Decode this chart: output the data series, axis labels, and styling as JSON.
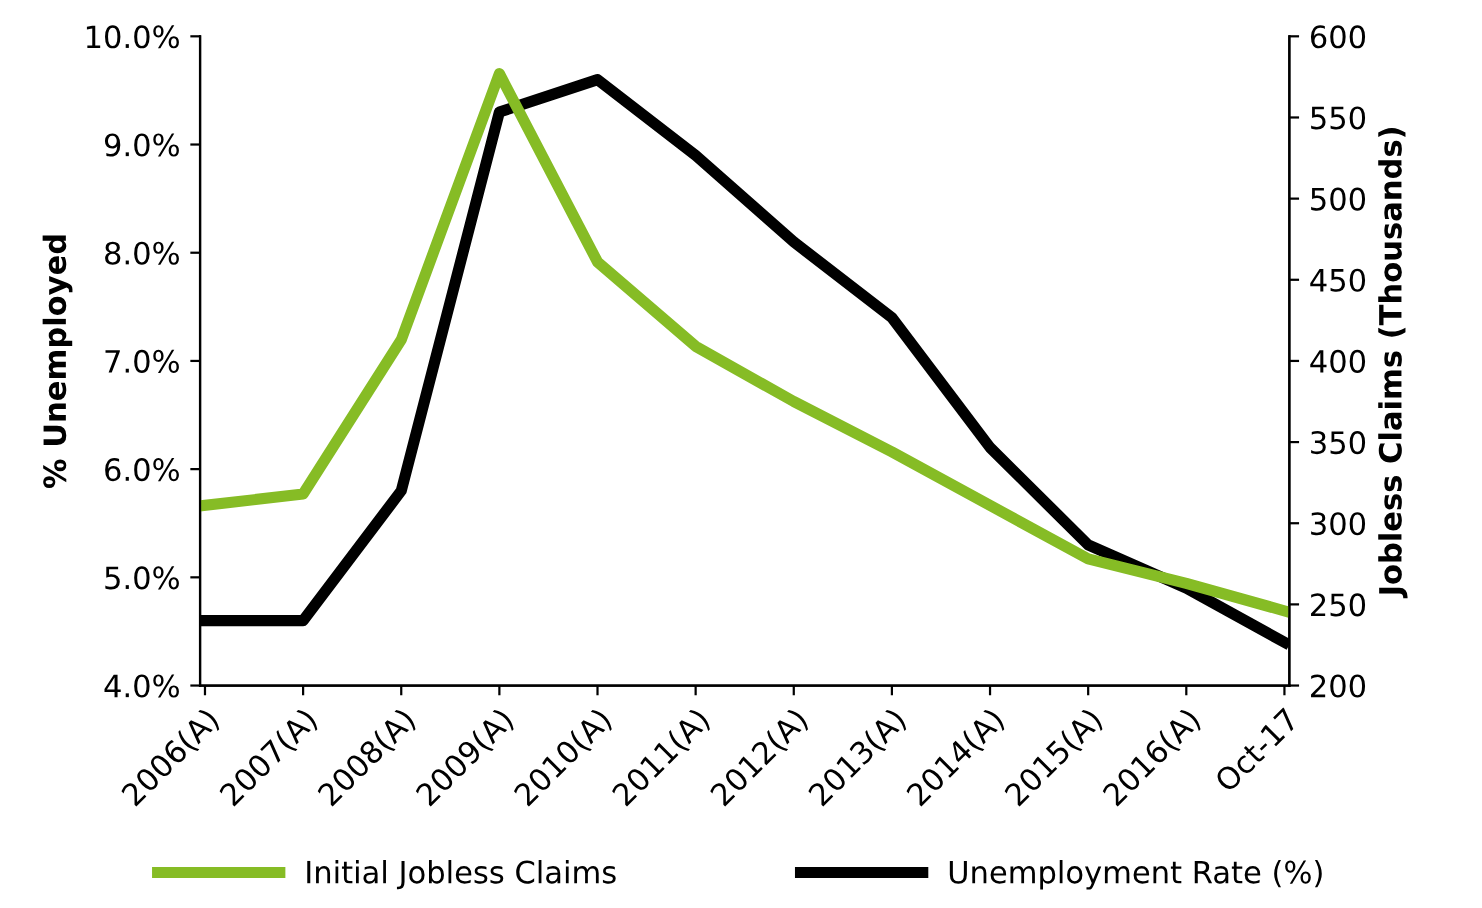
{
  "chart_data": {
    "type": "line",
    "ylabel": "% Unemployed",
    "y2label": "Jobless Claims (Thousands)",
    "categories": [
      "2006(A)",
      "2007(A)",
      "2008(A)",
      "2009(A)",
      "2010(A)",
      "2011(A)",
      "2012(A)",
      "2013(A)",
      "2014(A)",
      "2015(A)",
      "2016(A)",
      "Oct-17"
    ],
    "series": [
      {
        "name": "Initial Jobless Claims",
        "color": "#86bc25",
        "axis": "y2",
        "values": [
          311,
          318,
          413,
          577,
          461,
          409,
          375,
          344,
          311,
          278,
          263,
          246
        ]
      },
      {
        "name": "Unemployment Rate (%)",
        "color": "#000000",
        "axis": "y",
        "values": [
          4.6,
          4.6,
          5.8,
          9.3,
          9.6,
          8.9,
          8.1,
          7.4,
          6.2,
          5.3,
          4.9,
          4.4
        ]
      }
    ],
    "ylim": [
      4,
      10
    ],
    "yticks": [
      {
        "value": 4,
        "label": "4.0%"
      },
      {
        "value": 5,
        "label": "5.0%"
      },
      {
        "value": 6,
        "label": "6.0%"
      },
      {
        "value": 7,
        "label": "7.0%"
      },
      {
        "value": 8,
        "label": "8.0%"
      },
      {
        "value": 9,
        "label": "9.0%"
      },
      {
        "value": 10,
        "label": "10.0%"
      }
    ],
    "y2lim": [
      200,
      600
    ],
    "y2ticks": [
      200,
      250,
      300,
      350,
      400,
      450,
      500,
      550,
      600
    ],
    "grid": false,
    "legend": "bottom",
    "marker": "none",
    "line_style": "solid"
  }
}
